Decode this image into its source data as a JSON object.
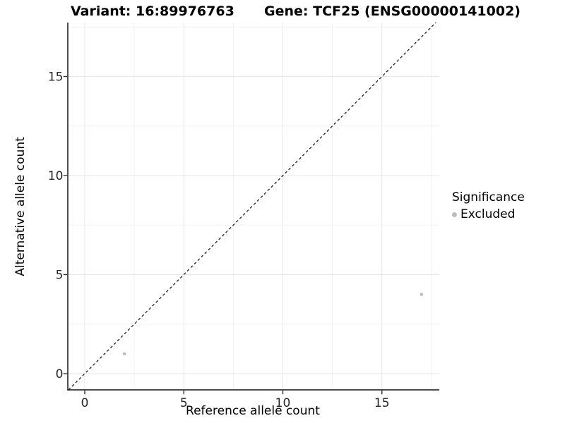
{
  "titles": {
    "variant": "Variant: 16:89976763",
    "gene": "Gene: TCF25 (ENSG00000141002)"
  },
  "chart_data": {
    "type": "scatter",
    "xlabel": "Reference allele count",
    "ylabel": "Alternative allele count",
    "x_ticks": [
      0,
      5,
      10,
      15
    ],
    "y_ticks": [
      0,
      5,
      10,
      15
    ],
    "x_minor_ticks": [
      2.5,
      7.5,
      12.5,
      17.5
    ],
    "y_minor_ticks": [
      2.5,
      7.5,
      12.5,
      17.5
    ],
    "xlim": [
      -0.86,
      17.9
    ],
    "ylim": [
      -0.82,
      17.72
    ],
    "grid": "major+minor",
    "identity_line": {
      "equation": "y = x",
      "style": "dashed",
      "color": "#111111"
    },
    "points": [
      {
        "x": 2,
        "y": 1,
        "series": "Excluded"
      },
      {
        "x": 17,
        "y": 4,
        "series": "Excluded"
      }
    ],
    "legend": {
      "title": "Significance",
      "position": "right",
      "entries": [
        {
          "label": "Excluded",
          "color": "#bdbdbd"
        }
      ]
    }
  },
  "colors": {
    "background": "#ffffff",
    "point": "#bdbdbd",
    "grid_major": "#e7e7e7",
    "grid_minor": "#f2f2f2",
    "axis_line": "#333333",
    "tick_label": "#262626",
    "identity_line": "#111111"
  }
}
